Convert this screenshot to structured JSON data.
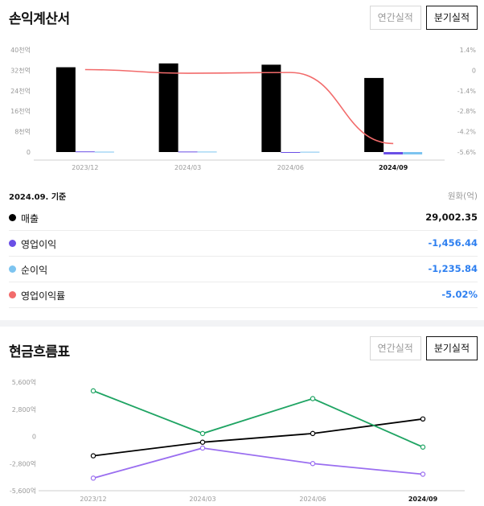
{
  "income": {
    "title": "손익계산서",
    "toggle": {
      "annual": "연간실적",
      "quarterly": "분기실적",
      "active": "quarterly"
    },
    "basis_label": "2024.09. 기준",
    "unit_label": "원화(억)",
    "rows": [
      {
        "name": "매출",
        "value": "29,002.35",
        "color": "#000000",
        "negative": false
      },
      {
        "name": "영업이익",
        "value": "-1,456.44",
        "color": "#6a4fe6",
        "negative": true
      },
      {
        "name": "순이익",
        "value": "-1,235.84",
        "color": "#7dc4f0",
        "negative": true
      },
      {
        "name": "영업이익률",
        "value": "-5.02%",
        "color": "#f26b6b",
        "negative": true
      }
    ]
  },
  "cashflow": {
    "title": "현금흐름표",
    "toggle": {
      "annual": "연간실적",
      "quarterly": "분기실적",
      "active": "quarterly"
    }
  },
  "chart_data": [
    {
      "type": "bar",
      "title": "손익계산서",
      "categories": [
        "2023/12",
        "2024/03",
        "2024/06",
        "2024/09"
      ],
      "highlighted_category": "2024/09",
      "y_left_ticks": [
        "0",
        "8천억",
        "16천억",
        "24천억",
        "32천억",
        "40천억"
      ],
      "y_right_ticks": [
        "1.4%",
        "0",
        "-1.4%",
        "-2.8%",
        "-4.2%",
        "-5.6%"
      ],
      "ylim_left": [
        0,
        40000
      ],
      "ylim_right": [
        -5.6,
        1.4
      ],
      "series": [
        {
          "name": "매출",
          "type": "bar",
          "color": "#000000",
          "values": [
            33200,
            34700,
            34200,
            29002.35
          ]
        },
        {
          "name": "영업이익",
          "type": "bar",
          "color": "#6a4fe6",
          "values": [
            250,
            200,
            0,
            -1456.44
          ]
        },
        {
          "name": "순이익",
          "type": "bar",
          "color": "#7dc4f0",
          "values": [
            150,
            180,
            120,
            -1235.84
          ]
        },
        {
          "name": "영업이익률",
          "type": "line",
          "axis": "right",
          "color": "#f26b6b",
          "values": [
            0.05,
            -0.2,
            -0.15,
            -5.02
          ]
        }
      ]
    },
    {
      "type": "line",
      "title": "현금흐름표",
      "categories": [
        "2023/12",
        "2024/03",
        "2024/06",
        "2024/09"
      ],
      "highlighted_category": "2024/09",
      "y_ticks": [
        "5,600억",
        "2,800억",
        "0",
        "-2,800억",
        "-5,600억"
      ],
      "ylim": [
        -5600,
        5600
      ],
      "series": [
        {
          "color": "#000000",
          "values": [
            -2000,
            -600,
            300,
            1800
          ]
        },
        {
          "color": "#1fa463",
          "values": [
            4700,
            300,
            3900,
            -1100
          ]
        },
        {
          "color": "#9a6ef0",
          "values": [
            -4300,
            -1200,
            -2800,
            -3900
          ]
        }
      ]
    }
  ]
}
